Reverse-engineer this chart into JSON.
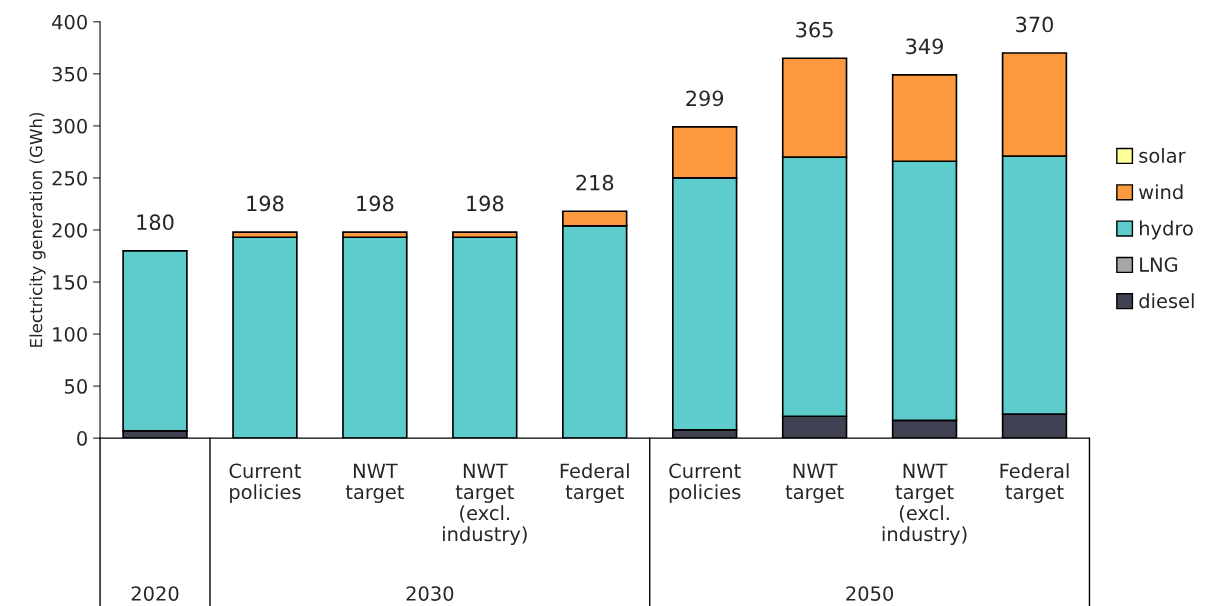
{
  "chart_data": {
    "type": "bar",
    "stacked": true,
    "ylabel": "Electricity generation (GWh)",
    "categories": [
      null,
      "Current\npolicies",
      "NWT\ntarget",
      "NWT\ntarget\n(excl.\nindustry)",
      "Federal\ntarget",
      "Current\npolicies",
      "NWT\ntarget",
      "NWT\ntarget\n(excl.\nindustry)",
      "Federal\ntarget"
    ],
    "series": [
      {
        "name": "diesel",
        "color": "#404254",
        "values": [
          7,
          0,
          0,
          0,
          0,
          8,
          21,
          17,
          23
        ]
      },
      {
        "name": "LNG",
        "color": "#a6a6a6",
        "values": [
          0,
          0,
          0,
          0,
          0,
          0,
          0,
          0,
          0
        ]
      },
      {
        "name": "hydro",
        "color": "#5ecccc",
        "values": [
          173,
          193,
          193,
          193,
          204,
          242,
          249,
          249,
          248
        ]
      },
      {
        "name": "wind",
        "color": "#fd9a3f",
        "values": [
          0,
          5,
          5,
          5,
          14,
          49,
          95,
          83,
          99
        ]
      },
      {
        "name": "solar",
        "color": "#ffff99",
        "values": [
          0,
          0,
          0,
          0,
          0,
          0,
          0,
          0,
          0
        ]
      }
    ],
    "totals": [
      "180",
      "198",
      "198",
      "198",
      "218",
      "299",
      "365",
      "349",
      "370"
    ],
    "annotations": [
      "2020",
      "2030",
      "2050"
    ],
    "ylim": [
      0,
      400
    ],
    "yticks": [
      0,
      50,
      100,
      150,
      200,
      250,
      300,
      350,
      400
    ],
    "grid": false,
    "legend": "right"
  }
}
